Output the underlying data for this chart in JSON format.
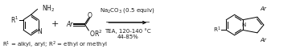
{
  "bg_color": "#ffffff",
  "fig_width": 3.78,
  "fig_height": 0.66,
  "dpi": 100,
  "text_color": "#1a1a1a",
  "conditions_line1": "Na$_2$CO$_3$ (0.5 equiv)",
  "conditions_line2": "TEA, 120-140 °C",
  "conditions_line3": "44-85%",
  "footnote": "R$^1$ = alkyl, aryl; R$^2$ = ethyl or methyl"
}
